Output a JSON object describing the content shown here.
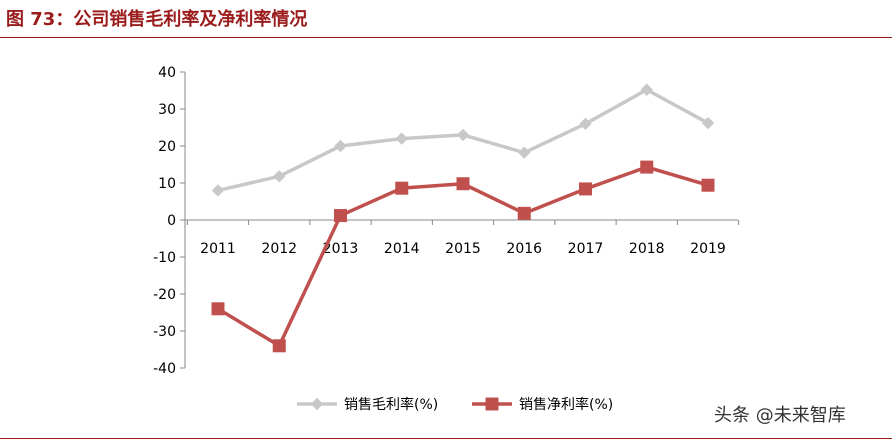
{
  "figure": {
    "title": "图  73：公司销售毛利率及净利率情况"
  },
  "watermark": "头条 @未来智库",
  "colors": {
    "title": "#9b1c1c",
    "rule": "#9b1c1c",
    "axis": "#888888",
    "text": "#000000"
  },
  "chart_data": {
    "type": "line",
    "title": "",
    "xlabel": "",
    "ylabel": "",
    "categories": [
      "2011",
      "2012",
      "2013",
      "2014",
      "2015",
      "2016",
      "2017",
      "2018",
      "2019"
    ],
    "ylim": [
      -40,
      40
    ],
    "yticks": [
      40,
      30,
      20,
      10,
      0,
      -10,
      -20,
      -30,
      -40
    ],
    "ytick_labels": [
      "40",
      "30",
      "20",
      "10",
      "0",
      "-10",
      "-20",
      "-30",
      "-40"
    ],
    "grid": false,
    "legend_position": "bottom",
    "series": [
      {
        "name": "销售毛利率(%)",
        "color": "#c8c8c8",
        "marker": "diamond",
        "values": [
          8,
          11.8,
          20,
          22,
          23,
          18.2,
          26,
          35.2,
          26.2
        ]
      },
      {
        "name": "销售净利率(%)",
        "color": "#c0504d",
        "marker": "square",
        "values": [
          -24,
          -34,
          1.2,
          8.6,
          9.8,
          1.8,
          8.4,
          14.3,
          9.4
        ]
      }
    ]
  }
}
